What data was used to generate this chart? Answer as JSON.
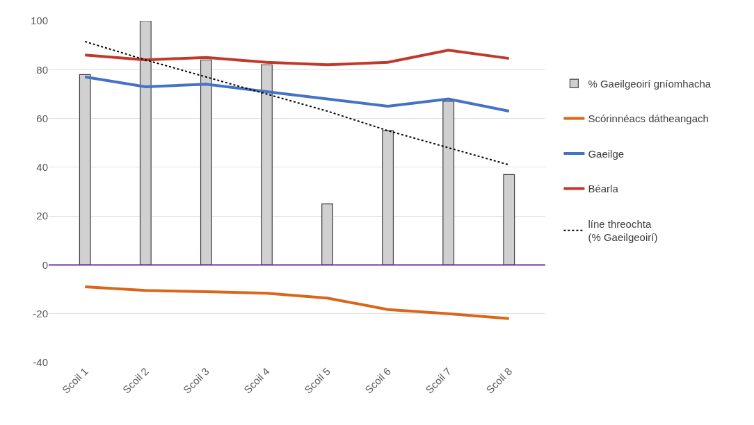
{
  "chart_data": {
    "type": "bar",
    "categories": [
      "Scoil 1",
      "Scoil 2",
      "Scoil 3",
      "Scoil 4",
      "Scoil 5",
      "Scoil 6",
      "Scoil 7",
      "Scoil 8"
    ],
    "series": [
      {
        "name": "% Gaeilgeoirí gníomhacha",
        "color": "#d0d0d0",
        "values": [
          78,
          100,
          84,
          82,
          25,
          55,
          67,
          37
        ]
      },
      {
        "name": "Scórinnéacs dátheangach",
        "type": "line",
        "color": "#d9661a",
        "values": [
          -9,
          -10.5,
          -11,
          -11.6,
          -13.6,
          -18.3,
          -20,
          -22
        ]
      },
      {
        "name": "Gaeilge",
        "type": "line",
        "color": "#4472c4",
        "values": [
          77,
          73,
          74,
          71,
          68,
          65,
          68,
          63
        ]
      },
      {
        "name": "Béarla",
        "type": "line",
        "color": "#c0392b",
        "values": [
          86,
          84,
          85,
          83,
          82,
          83,
          88,
          84.6
        ]
      },
      {
        "name": "líne threochta\n(% Gaeilgeoirí)",
        "type": "line",
        "color": "#000000",
        "line_style": "dotted",
        "values": [
          91.5,
          84,
          77,
          70,
          63,
          55,
          48,
          41
        ]
      }
    ],
    "ylim": [
      -40,
      100
    ],
    "yticks": [
      -40,
      -20,
      0,
      20,
      40,
      60,
      80,
      100
    ],
    "ref_lines": [
      {
        "axis": "y",
        "value": 0,
        "color": "#7030a0"
      }
    ],
    "grid": "y",
    "legend": "right",
    "marker": "none"
  }
}
